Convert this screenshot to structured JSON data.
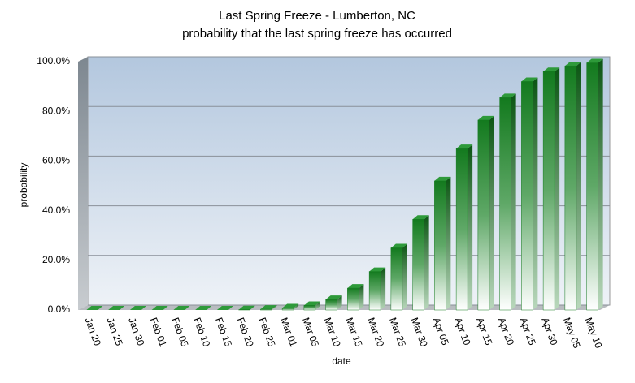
{
  "chart_data": {
    "type": "bar",
    "title": "Last Spring Freeze - Lumberton,  NC",
    "subtitle": "probability that the last spring freeze has occurred",
    "x_label": "date",
    "y_label": "probability",
    "categories": [
      "Jan 20",
      "Jan 25",
      "Jan 30",
      "Feb 01",
      "Feb 05",
      "Feb 10",
      "Feb 15",
      "Feb 20",
      "Feb 25",
      "Mar 01",
      "Mar 05",
      "Mar 10",
      "Mar 15",
      "Mar 20",
      "Mar 25",
      "Mar 30",
      "Apr 05",
      "Apr 10",
      "Apr 15",
      "Apr 20",
      "Apr 25",
      "Apr 30",
      "May 05",
      "May 10"
    ],
    "values": [
      0,
      0,
      0,
      0,
      0,
      0,
      0,
      0.1,
      0.3,
      0.8,
      1.8,
      4.2,
      8.8,
      15.5,
      25,
      36.5,
      52,
      65,
      76.5,
      85.5,
      92,
      96,
      98.3,
      99.5
    ],
    "color": "#137a1e",
    "ylim": [
      0,
      100
    ],
    "yticks": [
      {
        "value": 0,
        "label": "0.0%"
      },
      {
        "value": 20,
        "label": "20.0%"
      },
      {
        "value": 40,
        "label": "40.0%"
      },
      {
        "value": 60,
        "label": "60.0%"
      },
      {
        "value": 80,
        "label": "80.0%"
      },
      {
        "value": 100,
        "label": "100.0%"
      }
    ],
    "grid": true
  }
}
